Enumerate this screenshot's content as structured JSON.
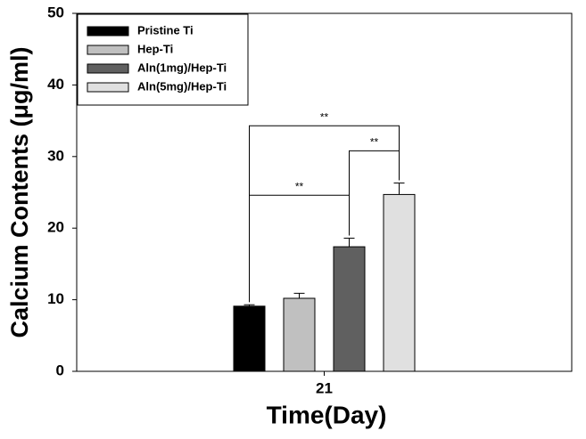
{
  "chart_data": {
    "type": "bar",
    "x_label": "Time(Day)",
    "y_label": "Calcium Contents (μg/ml)",
    "categories": [
      "21"
    ],
    "series": [
      {
        "name": "Pristine Ti",
        "color": "#000000",
        "values": [
          9.1
        ],
        "errors": [
          0.2
        ]
      },
      {
        "name": "Hep-Ti",
        "color": "#c0c0c0",
        "values": [
          10.2
        ],
        "errors": [
          0.7
        ]
      },
      {
        "name": "Aln(1mg)/Hep-Ti",
        "color": "#606060",
        "values": [
          17.4
        ],
        "errors": [
          1.2
        ]
      },
      {
        "name": "Aln(5mg)/Hep-Ti",
        "color": "#e0e0e0",
        "values": [
          24.7
        ],
        "errors": [
          1.6
        ]
      }
    ],
    "ylim": [
      0,
      50
    ],
    "yticks": [
      0,
      10,
      20,
      30,
      40,
      50
    ],
    "legend": "top-left",
    "annotations": [
      {
        "text": "**",
        "from": 0,
        "to": 3,
        "y": 34.3
      },
      {
        "text": "**",
        "from": 2,
        "to": 3,
        "y": 30.8
      },
      {
        "text": "**",
        "from": 0,
        "to": 2,
        "y": 24.6
      }
    ]
  }
}
